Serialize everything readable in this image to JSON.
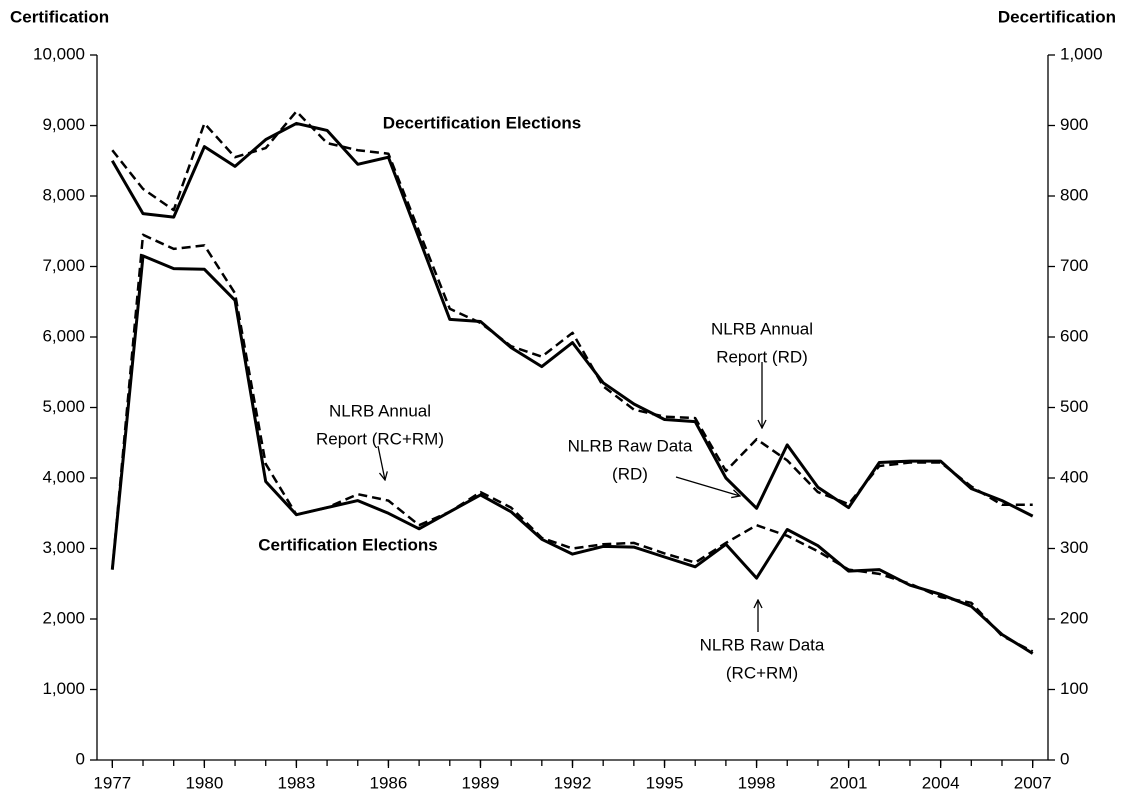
{
  "chart_data": {
    "type": "line",
    "y_axis_label": "Certification",
    "y2_axis_label": "Decertification",
    "x": [
      1977,
      1978,
      1979,
      1980,
      1981,
      1982,
      1983,
      1984,
      1985,
      1986,
      1987,
      1988,
      1989,
      1990,
      1991,
      1992,
      1993,
      1994,
      1995,
      1996,
      1997,
      1998,
      1999,
      2000,
      2001,
      2002,
      2003,
      2004,
      2005,
      2006,
      2007
    ],
    "xlim": [
      1976.5,
      2007.5
    ],
    "xticks": [
      1977,
      1980,
      1983,
      1986,
      1989,
      1992,
      1995,
      1998,
      2001,
      2004,
      2007
    ],
    "ylim": [
      0,
      10000
    ],
    "yticks": [
      0,
      {
        "value": 1000,
        "label": "1,000"
      },
      {
        "value": 2000,
        "label": "2,000"
      },
      {
        "value": 3000,
        "label": "3,000"
      },
      {
        "value": 4000,
        "label": "4,000"
      },
      {
        "value": 5000,
        "label": "5,000"
      },
      {
        "value": 6000,
        "label": "6,000"
      },
      {
        "value": 7000,
        "label": "7,000"
      },
      {
        "value": 8000,
        "label": "8,000"
      },
      {
        "value": 9000,
        "label": "9,000"
      },
      {
        "value": 10000,
        "label": "10,000"
      }
    ],
    "y2lim": [
      0,
      1000
    ],
    "y2ticks": [
      0,
      100,
      200,
      300,
      400,
      500,
      600,
      700,
      800,
      900,
      {
        "value": 1000,
        "label": "1,000"
      }
    ],
    "series": [
      {
        "color": "#000000",
        "style": "solid",
        "values": [
          2700,
          7150,
          6970,
          6960,
          6520,
          3950,
          3480,
          3580,
          3680,
          3500,
          3280,
          3520,
          3760,
          3520,
          3130,
          2920,
          3030,
          3020,
          2880,
          2740,
          3060,
          2580,
          3270,
          3040,
          2680,
          2700,
          2480,
          2350,
          2180,
          1780,
          1510
        ]
      },
      {
        "color": "#000000",
        "style": "dashed",
        "values": [
          2700,
          7450,
          7250,
          7300,
          6620,
          4200,
          3480,
          3580,
          3770,
          3680,
          3330,
          3520,
          3800,
          3580,
          3150,
          3000,
          3060,
          3080,
          2930,
          2800,
          3080,
          3330,
          3180,
          2960,
          2700,
          2640,
          2500,
          2310,
          2230,
          1760,
          1540
        ]
      },
      {
        "color": "#000000",
        "style": "solid",
        "axis": "y2",
        "values": [
          850,
          775,
          770,
          870,
          842,
          880,
          903,
          893,
          845,
          855,
          740,
          625,
          622,
          585,
          558,
          592,
          535,
          505,
          483,
          480,
          400,
          357,
          447,
          387,
          358,
          422,
          424,
          424,
          385,
          368,
          346
        ]
      },
      {
        "color": "#000000",
        "style": "dashed",
        "axis": "y2",
        "values": [
          865,
          810,
          780,
          903,
          855,
          868,
          920,
          875,
          865,
          860,
          750,
          640,
          620,
          587,
          572,
          606,
          530,
          497,
          487,
          485,
          410,
          455,
          425,
          380,
          363,
          417,
          422,
          422,
          388,
          362,
          362
        ]
      }
    ],
    "annotations": [
      {
        "lines": [
          "Decertification Elections"
        ],
        "bold": true
      },
      {
        "lines": [
          "Certification Elections"
        ],
        "bold": true
      },
      {
        "lines": [
          "NLRB Annual",
          "Report (RD)"
        ]
      },
      {
        "lines": [
          "NLRB Raw Data",
          "(RD)"
        ]
      },
      {
        "lines": [
          "NLRB Annual",
          "Report (RC+RM)"
        ]
      },
      {
        "lines": [
          "NLRB Raw Data",
          "(RC+RM)"
        ]
      }
    ]
  }
}
